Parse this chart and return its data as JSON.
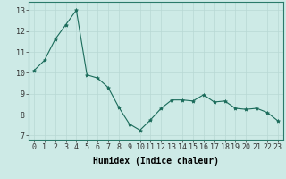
{
  "x": [
    0,
    1,
    2,
    3,
    4,
    5,
    6,
    7,
    8,
    9,
    10,
    11,
    12,
    13,
    14,
    15,
    16,
    17,
    18,
    19,
    20,
    21,
    22,
    23
  ],
  "y": [
    10.1,
    10.6,
    11.6,
    12.3,
    13.0,
    9.9,
    9.75,
    9.3,
    8.35,
    7.55,
    7.25,
    7.75,
    8.3,
    8.7,
    8.7,
    8.65,
    8.95,
    8.6,
    8.65,
    8.3,
    8.25,
    8.3,
    8.1,
    7.7
  ],
  "line_color": "#1a6b5a",
  "marker": "*",
  "marker_size": 3,
  "bg_color": "#cdeae6",
  "grid_color": "#b8d8d4",
  "xlabel": "Humidex (Indice chaleur)",
  "xlabel_fontsize": 7,
  "tick_fontsize": 6,
  "ylim": [
    6.8,
    13.4
  ],
  "xlim": [
    -0.5,
    23.5
  ],
  "yticks": [
    7,
    8,
    9,
    10,
    11,
    12,
    13
  ],
  "xticks": [
    0,
    1,
    2,
    3,
    4,
    5,
    6,
    7,
    8,
    9,
    10,
    11,
    12,
    13,
    14,
    15,
    16,
    17,
    18,
    19,
    20,
    21,
    22,
    23
  ]
}
